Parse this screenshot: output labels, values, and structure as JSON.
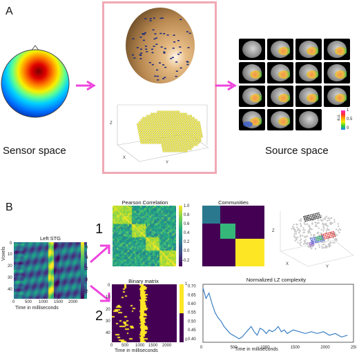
{
  "panel_a": {
    "letter": "A",
    "sensor_label": "Sensor space",
    "source_label": "Source space",
    "source_colorbar_ticks": [
      "1",
      "0.5",
      "0"
    ],
    "source_colorbar_label": "a.u.",
    "source_axes": {
      "z": "Z",
      "x": "X",
      "y": "Y"
    }
  },
  "panel_b": {
    "letter": "B",
    "step1": "1",
    "step2": "2",
    "heatmap": {
      "title": "Left STG",
      "ylabel": "Voxels",
      "xlabel": "Time in milliseconds",
      "yticks": [
        "0",
        "10",
        "20",
        "30",
        "40"
      ],
      "xticks": [
        "0",
        "500",
        "1000",
        "1500",
        "2000"
      ],
      "colorbar_ticks": [
        "6",
        "4",
        "2",
        "0",
        "-2"
      ]
    },
    "pearson": {
      "title": "Pearson Correlation",
      "colorbar_ticks": [
        "1.0",
        "0.8",
        "0.6",
        "0.4",
        "0.2",
        "0.0",
        "-0.2"
      ]
    },
    "communities": {
      "title": "Communities"
    },
    "brain3d_axes": {
      "z": "Z",
      "x": "X",
      "y": "Y"
    },
    "binary": {
      "title": "Binary matrix",
      "xlabel": "Time in milliseconds",
      "yticks": [
        "0",
        "10",
        "20",
        "30",
        "40"
      ],
      "xticks": [
        "0",
        "500",
        "1000",
        "1500",
        "2000"
      ],
      "colorbar_ticks": [
        "1",
        "0"
      ]
    },
    "lz": {
      "title": "Normalized LZ complexity",
      "xlabel": "Time in milliseconds",
      "yticks": [
        "0.70",
        "0.65",
        "0.60",
        "0.55",
        "0.50",
        "0.45",
        "0.40"
      ],
      "xticks": [
        "0",
        "500",
        "1000",
        "1500",
        "2000",
        "2500"
      ]
    }
  },
  "colors": {
    "arrow": "#ee44dd",
    "frame": "#f0a8b4",
    "viridis_dark": "#440154",
    "viridis_yellow": "#fde725",
    "teal": "#2a788e",
    "green": "#35b779",
    "line": "#3b7fc4"
  },
  "chart_data": [
    {
      "type": "line",
      "title": "Normalized LZ complexity",
      "xlabel": "Time in milliseconds",
      "ylabel": "",
      "xlim": [
        0,
        2500
      ],
      "ylim": [
        0.38,
        0.71
      ],
      "series": [
        {
          "x": [
            0,
            50,
            100,
            150,
            200,
            250,
            300,
            350,
            400,
            450,
            500,
            550,
            600,
            650,
            700,
            750,
            800,
            850,
            900,
            950,
            1000,
            1050,
            1100,
            1150,
            1200,
            1250,
            1300,
            1350,
            1400,
            1450,
            1500,
            1600,
            1700,
            1800,
            1900,
            2000,
            2100,
            2200,
            2300,
            2400
          ],
          "y": [
            0.69,
            0.63,
            0.66,
            0.6,
            0.55,
            0.52,
            0.5,
            0.47,
            0.45,
            0.43,
            0.42,
            0.41,
            0.4,
            0.41,
            0.43,
            0.45,
            0.47,
            0.44,
            0.42,
            0.46,
            0.45,
            0.43,
            0.45,
            0.44,
            0.45,
            0.47,
            0.44,
            0.45,
            0.43,
            0.44,
            0.45,
            0.44,
            0.43,
            0.44,
            0.43,
            0.44,
            0.42,
            0.43,
            0.41,
            0.42
          ]
        }
      ]
    }
  ]
}
